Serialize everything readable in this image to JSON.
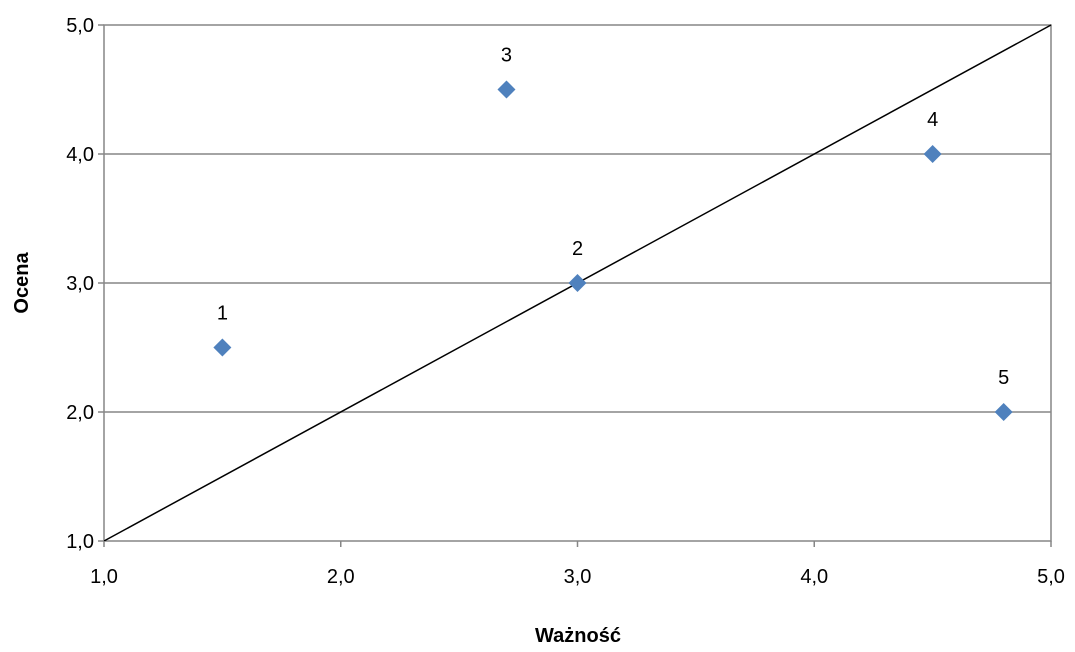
{
  "chart_data": {
    "type": "scatter",
    "xlabel": "Ważność",
    "ylabel": "Ocena",
    "xlim": [
      1.0,
      5.0
    ],
    "ylim": [
      1.0,
      5.0
    ],
    "x_ticks": [
      "1,0",
      "2,0",
      "3,0",
      "4,0",
      "5,0"
    ],
    "y_ticks": [
      "1,0",
      "2,0",
      "3,0",
      "4,0",
      "5,0"
    ],
    "grid": "horizontal",
    "legend": "none",
    "marker": "diamond",
    "colors": {
      "marker": "#4F81BD",
      "grid": "#868686",
      "reference_line": "#000000"
    },
    "reference_line": {
      "from": [
        1.0,
        1.0
      ],
      "to": [
        5.0,
        5.0
      ]
    },
    "points": [
      {
        "label": "1",
        "x": 1.5,
        "y": 2.5
      },
      {
        "label": "2",
        "x": 3.0,
        "y": 3.0
      },
      {
        "label": "3",
        "x": 2.7,
        "y": 4.5
      },
      {
        "label": "4",
        "x": 4.5,
        "y": 4.0
      },
      {
        "label": "5",
        "x": 4.8,
        "y": 2.0
      }
    ]
  }
}
